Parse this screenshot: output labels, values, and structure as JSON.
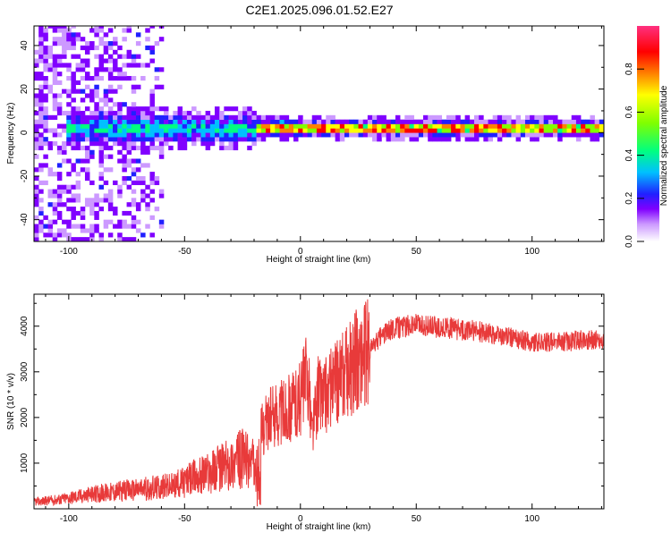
{
  "title": "C2E1.2025.096.01.52.E27",
  "colors": {
    "snr_line": "#e83a3a",
    "axis": "#000000"
  },
  "chart_data": [
    {
      "type": "heatmap",
      "xlabel": "Height of straight line (km)",
      "ylabel": "Frequency (Hz)",
      "xlim": [
        -115,
        131
      ],
      "ylim": [
        -50,
        49
      ],
      "xticks": [
        -100,
        -50,
        0,
        50,
        100
      ],
      "xtick_labels": [
        "-100",
        "-50",
        "0",
        "50",
        "100"
      ],
      "yticks": [
        -40,
        -20,
        0,
        20,
        40
      ],
      "ytick_labels": [
        "-40",
        "-20",
        "0",
        "20",
        "40"
      ],
      "colorbar": {
        "label": "Normalized spectral amplitude",
        "range": [
          0,
          1
        ],
        "ticks": [
          0.0,
          0.2,
          0.4,
          0.6,
          0.8
        ],
        "tick_labels": [
          "0.0",
          "0.2",
          "0.4",
          "0.6",
          "0.8"
        ],
        "colormap": [
          "#ffffff",
          "#cc99ff",
          "#8000ff",
          "#2020ff",
          "#00c0ff",
          "#00ff80",
          "#80ff00",
          "#ffff00",
          "#ff8000",
          "#ff0000",
          "#ff3080"
        ]
      },
      "features": [
        {
          "x_range": [
            -115,
            -60
          ],
          "description_freq_range": [
            -50,
            49
          ],
          "level": 0.2
        },
        {
          "x_range": [
            -100,
            -20
          ],
          "description_freq_range": [
            -10,
            10
          ],
          "level": 0.45
        },
        {
          "x_range": [
            -20,
            131
          ],
          "description_freq_range": [
            -2,
            2
          ],
          "level": 0.85
        }
      ]
    },
    {
      "type": "line",
      "xlabel": "Height of straight line (km)",
      "ylabel": "SNR (10 * v/v)",
      "xlim": [
        -115,
        131
      ],
      "ylim": [
        0,
        4700
      ],
      "xticks": [
        -100,
        -50,
        0,
        50,
        100
      ],
      "xtick_labels": [
        "-100",
        "-50",
        "0",
        "50",
        "100"
      ],
      "yticks": [
        1000,
        2000,
        3000,
        4000
      ],
      "ytick_labels": [
        "1000",
        "2000",
        "3000",
        "4000"
      ],
      "series": [
        {
          "x": [
            -115,
            -105,
            -95,
            -85,
            -75,
            -65,
            -55,
            -50,
            -45,
            -40,
            -35,
            -30,
            -25,
            -20,
            -18,
            -15,
            -10,
            -5,
            0,
            3,
            5,
            8,
            10,
            15,
            20,
            25,
            30,
            35,
            40,
            45,
            50,
            55,
            60,
            65,
            70,
            75,
            80,
            85,
            90,
            95,
            100,
            105,
            110,
            115,
            120,
            125,
            131
          ],
          "y": [
            150,
            200,
            280,
            350,
            400,
            450,
            500,
            600,
            700,
            800,
            900,
            1000,
            1100,
            1000,
            1600,
            1900,
            2100,
            2200,
            2400,
            3000,
            1700,
            2600,
            2500,
            2700,
            3000,
            3300,
            3500,
            3800,
            3950,
            4000,
            4050,
            4000,
            3950,
            3950,
            3900,
            3900,
            3850,
            3800,
            3750,
            3700,
            3650,
            3650,
            3650,
            3650,
            3700,
            3700,
            3700
          ]
        }
      ]
    }
  ]
}
